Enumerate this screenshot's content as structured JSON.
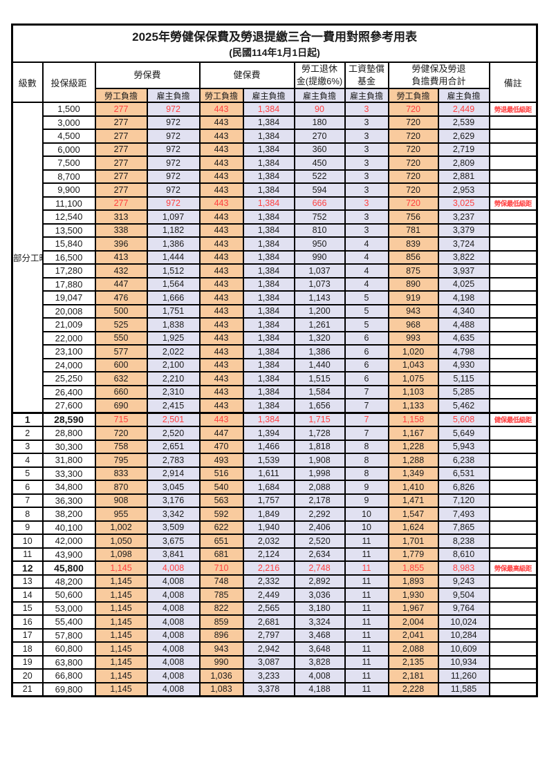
{
  "title": "2025年勞健保保費及勞退提繳三合一費用對照參考用表",
  "subtitle": "(民國114年1月1日起)",
  "header": {
    "level": "級數",
    "bracket": "投保級距",
    "labor_ins": "勞保費",
    "health_ins": "健保費",
    "pension": "勞工退休\n金(提繳6%)",
    "wage_fund": "工資墊償\n基金",
    "total": "勞健保及勞退\n負擔費用合計",
    "note": "備註",
    "employee": "勞工負擔",
    "employer": "雇主負擔"
  },
  "part_time_label": "部分工時",
  "part_time_rowspan": 23,
  "colors": {
    "employee_bg": "#F9CB9E",
    "employer_bg": "#E1E1F1",
    "highlight_text": "#FF4040",
    "border": "#000000"
  },
  "column_bg_pattern": [
    "emp",
    "er",
    "emp",
    "er",
    "er",
    "er",
    "emp",
    "er"
  ],
  "rows": [
    {
      "level": "",
      "bracket": "1,500",
      "values": [
        "277",
        "972",
        "443",
        "1,384",
        "90",
        "3",
        "720",
        "2,449"
      ],
      "note": "勞退最低級距",
      "highlight": true,
      "em": false,
      "sep": false
    },
    {
      "level": "",
      "bracket": "3,000",
      "values": [
        "277",
        "972",
        "443",
        "1,384",
        "180",
        "3",
        "720",
        "2,539"
      ],
      "note": "",
      "highlight": false,
      "em": false,
      "sep": false
    },
    {
      "level": "",
      "bracket": "4,500",
      "values": [
        "277",
        "972",
        "443",
        "1,384",
        "270",
        "3",
        "720",
        "2,629"
      ],
      "note": "",
      "highlight": false,
      "em": false,
      "sep": false
    },
    {
      "level": "",
      "bracket": "6,000",
      "values": [
        "277",
        "972",
        "443",
        "1,384",
        "360",
        "3",
        "720",
        "2,719"
      ],
      "note": "",
      "highlight": false,
      "em": false,
      "sep": false
    },
    {
      "level": "",
      "bracket": "7,500",
      "values": [
        "277",
        "972",
        "443",
        "1,384",
        "450",
        "3",
        "720",
        "2,809"
      ],
      "note": "",
      "highlight": false,
      "em": false,
      "sep": false
    },
    {
      "level": "",
      "bracket": "8,700",
      "values": [
        "277",
        "972",
        "443",
        "1,384",
        "522",
        "3",
        "720",
        "2,881"
      ],
      "note": "",
      "highlight": false,
      "em": false,
      "sep": false
    },
    {
      "level": "",
      "bracket": "9,900",
      "values": [
        "277",
        "972",
        "443",
        "1,384",
        "594",
        "3",
        "720",
        "2,953"
      ],
      "note": "",
      "highlight": false,
      "em": false,
      "sep": false
    },
    {
      "level": "",
      "bracket": "11,100",
      "values": [
        "277",
        "972",
        "443",
        "1,384",
        "666",
        "3",
        "720",
        "3,025"
      ],
      "note": "勞保最低級距",
      "highlight": true,
      "em": false,
      "sep": false
    },
    {
      "level": "",
      "bracket": "12,540",
      "values": [
        "313",
        "1,097",
        "443",
        "1,384",
        "752",
        "3",
        "756",
        "3,237"
      ],
      "note": "",
      "highlight": false,
      "em": false,
      "sep": false
    },
    {
      "level": "",
      "bracket": "13,500",
      "values": [
        "338",
        "1,182",
        "443",
        "1,384",
        "810",
        "3",
        "781",
        "3,379"
      ],
      "note": "",
      "highlight": false,
      "em": false,
      "sep": false
    },
    {
      "level": "",
      "bracket": "15,840",
      "values": [
        "396",
        "1,386",
        "443",
        "1,384",
        "950",
        "4",
        "839",
        "3,724"
      ],
      "note": "",
      "highlight": false,
      "em": false,
      "sep": false
    },
    {
      "level": "",
      "bracket": "16,500",
      "values": [
        "413",
        "1,444",
        "443",
        "1,384",
        "990",
        "4",
        "856",
        "3,822"
      ],
      "note": "",
      "highlight": false,
      "em": false,
      "sep": false
    },
    {
      "level": "",
      "bracket": "17,280",
      "values": [
        "432",
        "1,512",
        "443",
        "1,384",
        "1,037",
        "4",
        "875",
        "3,937"
      ],
      "note": "",
      "highlight": false,
      "em": false,
      "sep": false
    },
    {
      "level": "",
      "bracket": "17,880",
      "values": [
        "447",
        "1,564",
        "443",
        "1,384",
        "1,073",
        "4",
        "890",
        "4,025"
      ],
      "note": "",
      "highlight": false,
      "em": false,
      "sep": false
    },
    {
      "level": "",
      "bracket": "19,047",
      "values": [
        "476",
        "1,666",
        "443",
        "1,384",
        "1,143",
        "5",
        "919",
        "4,198"
      ],
      "note": "",
      "highlight": false,
      "em": false,
      "sep": false
    },
    {
      "level": "",
      "bracket": "20,008",
      "values": [
        "500",
        "1,751",
        "443",
        "1,384",
        "1,200",
        "5",
        "943",
        "4,340"
      ],
      "note": "",
      "highlight": false,
      "em": false,
      "sep": false
    },
    {
      "level": "",
      "bracket": "21,009",
      "values": [
        "525",
        "1,838",
        "443",
        "1,384",
        "1,261",
        "5",
        "968",
        "4,488"
      ],
      "note": "",
      "highlight": false,
      "em": false,
      "sep": false
    },
    {
      "level": "",
      "bracket": "22,000",
      "values": [
        "550",
        "1,925",
        "443",
        "1,384",
        "1,320",
        "6",
        "993",
        "4,635"
      ],
      "note": "",
      "highlight": false,
      "em": false,
      "sep": false
    },
    {
      "level": "",
      "bracket": "23,100",
      "values": [
        "577",
        "2,022",
        "443",
        "1,384",
        "1,386",
        "6",
        "1,020",
        "4,798"
      ],
      "note": "",
      "highlight": false,
      "em": false,
      "sep": false
    },
    {
      "level": "",
      "bracket": "24,000",
      "values": [
        "600",
        "2,100",
        "443",
        "1,384",
        "1,440",
        "6",
        "1,043",
        "4,930"
      ],
      "note": "",
      "highlight": false,
      "em": false,
      "sep": false
    },
    {
      "level": "",
      "bracket": "25,250",
      "values": [
        "632",
        "2,210",
        "443",
        "1,384",
        "1,515",
        "6",
        "1,075",
        "5,115"
      ],
      "note": "",
      "highlight": false,
      "em": false,
      "sep": false
    },
    {
      "level": "",
      "bracket": "26,400",
      "values": [
        "660",
        "2,310",
        "443",
        "1,384",
        "1,584",
        "7",
        "1,103",
        "5,285"
      ],
      "note": "",
      "highlight": false,
      "em": false,
      "sep": false
    },
    {
      "level": "",
      "bracket": "27,600",
      "values": [
        "690",
        "2,415",
        "443",
        "1,384",
        "1,656",
        "7",
        "1,133",
        "5,462"
      ],
      "note": "",
      "highlight": false,
      "em": false,
      "sep": false
    },
    {
      "level": "1",
      "bracket": "28,590",
      "values": [
        "715",
        "2,501",
        "443",
        "1,384",
        "1,715",
        "7",
        "1,158",
        "5,608"
      ],
      "note": "健保最低級距",
      "highlight": true,
      "em": true,
      "sep": true
    },
    {
      "level": "2",
      "bracket": "28,800",
      "values": [
        "720",
        "2,520",
        "447",
        "1,394",
        "1,728",
        "7",
        "1,167",
        "5,649"
      ],
      "note": "",
      "highlight": false,
      "em": false,
      "sep": false
    },
    {
      "level": "3",
      "bracket": "30,300",
      "values": [
        "758",
        "2,651",
        "470",
        "1,466",
        "1,818",
        "8",
        "1,228",
        "5,943"
      ],
      "note": "",
      "highlight": false,
      "em": false,
      "sep": false
    },
    {
      "level": "4",
      "bracket": "31,800",
      "values": [
        "795",
        "2,783",
        "493",
        "1,539",
        "1,908",
        "8",
        "1,288",
        "6,238"
      ],
      "note": "",
      "highlight": false,
      "em": false,
      "sep": false
    },
    {
      "level": "5",
      "bracket": "33,300",
      "values": [
        "833",
        "2,914",
        "516",
        "1,611",
        "1,998",
        "8",
        "1,349",
        "6,531"
      ],
      "note": "",
      "highlight": false,
      "em": false,
      "sep": false
    },
    {
      "level": "6",
      "bracket": "34,800",
      "values": [
        "870",
        "3,045",
        "540",
        "1,684",
        "2,088",
        "9",
        "1,410",
        "6,826"
      ],
      "note": "",
      "highlight": false,
      "em": false,
      "sep": false
    },
    {
      "level": "7",
      "bracket": "36,300",
      "values": [
        "908",
        "3,176",
        "563",
        "1,757",
        "2,178",
        "9",
        "1,471",
        "7,120"
      ],
      "note": "",
      "highlight": false,
      "em": false,
      "sep": false
    },
    {
      "level": "8",
      "bracket": "38,200",
      "values": [
        "955",
        "3,342",
        "592",
        "1,849",
        "2,292",
        "10",
        "1,547",
        "7,493"
      ],
      "note": "",
      "highlight": false,
      "em": false,
      "sep": false
    },
    {
      "level": "9",
      "bracket": "40,100",
      "values": [
        "1,002",
        "3,509",
        "622",
        "1,940",
        "2,406",
        "10",
        "1,624",
        "7,865"
      ],
      "note": "",
      "highlight": false,
      "em": false,
      "sep": false
    },
    {
      "level": "10",
      "bracket": "42,000",
      "values": [
        "1,050",
        "3,675",
        "651",
        "2,032",
        "2,520",
        "11",
        "1,701",
        "8,238"
      ],
      "note": "",
      "highlight": false,
      "em": false,
      "sep": false
    },
    {
      "level": "11",
      "bracket": "43,900",
      "values": [
        "1,098",
        "3,841",
        "681",
        "2,124",
        "2,634",
        "11",
        "1,779",
        "8,610"
      ],
      "note": "",
      "highlight": false,
      "em": false,
      "sep": false
    },
    {
      "level": "12",
      "bracket": "45,800",
      "values": [
        "1,145",
        "4,008",
        "710",
        "2,216",
        "2,748",
        "11",
        "1,855",
        "8,983"
      ],
      "note": "勞保最高級距",
      "highlight": true,
      "em": true,
      "sep": false
    },
    {
      "level": "13",
      "bracket": "48,200",
      "values": [
        "1,145",
        "4,008",
        "748",
        "2,332",
        "2,892",
        "11",
        "1,893",
        "9,243"
      ],
      "note": "",
      "highlight": false,
      "em": false,
      "sep": false
    },
    {
      "level": "14",
      "bracket": "50,600",
      "values": [
        "1,145",
        "4,008",
        "785",
        "2,449",
        "3,036",
        "11",
        "1,930",
        "9,504"
      ],
      "note": "",
      "highlight": false,
      "em": false,
      "sep": false
    },
    {
      "level": "15",
      "bracket": "53,000",
      "values": [
        "1,145",
        "4,008",
        "822",
        "2,565",
        "3,180",
        "11",
        "1,967",
        "9,764"
      ],
      "note": "",
      "highlight": false,
      "em": false,
      "sep": false
    },
    {
      "level": "16",
      "bracket": "55,400",
      "values": [
        "1,145",
        "4,008",
        "859",
        "2,681",
        "3,324",
        "11",
        "2,004",
        "10,024"
      ],
      "note": "",
      "highlight": false,
      "em": false,
      "sep": false
    },
    {
      "level": "17",
      "bracket": "57,800",
      "values": [
        "1,145",
        "4,008",
        "896",
        "2,797",
        "3,468",
        "11",
        "2,041",
        "10,284"
      ],
      "note": "",
      "highlight": false,
      "em": false,
      "sep": false
    },
    {
      "level": "18",
      "bracket": "60,800",
      "values": [
        "1,145",
        "4,008",
        "943",
        "2,942",
        "3,648",
        "11",
        "2,088",
        "10,609"
      ],
      "note": "",
      "highlight": false,
      "em": false,
      "sep": false
    },
    {
      "level": "19",
      "bracket": "63,800",
      "values": [
        "1,145",
        "4,008",
        "990",
        "3,087",
        "3,828",
        "11",
        "2,135",
        "10,934"
      ],
      "note": "",
      "highlight": false,
      "em": false,
      "sep": false
    },
    {
      "level": "20",
      "bracket": "66,800",
      "values": [
        "1,145",
        "4,008",
        "1,036",
        "3,233",
        "4,008",
        "11",
        "2,181",
        "11,260"
      ],
      "note": "",
      "highlight": false,
      "em": false,
      "sep": false
    },
    {
      "level": "21",
      "bracket": "69,800",
      "values": [
        "1,145",
        "4,008",
        "1,083",
        "3,378",
        "4,188",
        "11",
        "2,228",
        "11,585"
      ],
      "note": "",
      "highlight": false,
      "em": false,
      "sep": false
    }
  ]
}
